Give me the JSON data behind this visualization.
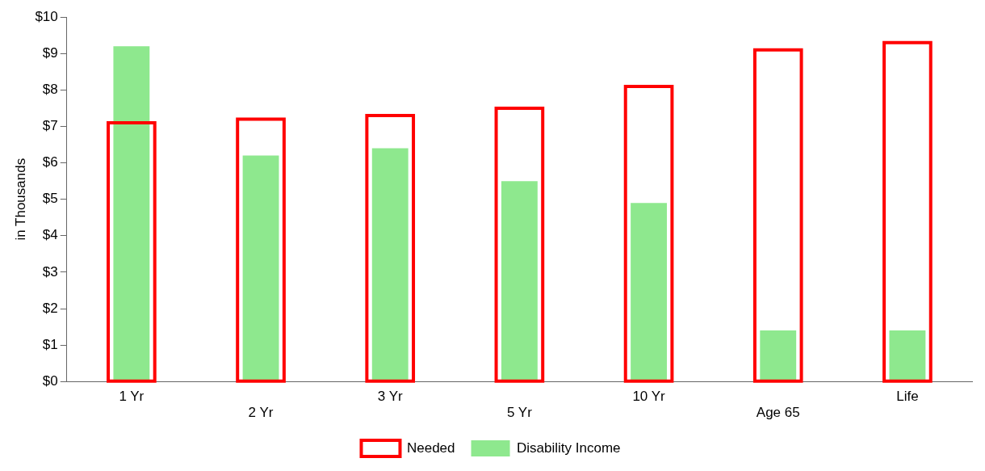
{
  "chart_data": {
    "type": "bar",
    "ylabel": "in Thousands",
    "categories": [
      "1 Yr",
      "2 Yr",
      "3 Yr",
      "5 Yr",
      "10 Yr",
      "Age 65",
      "Life"
    ],
    "series": [
      {
        "name": "Needed",
        "color": "#ff0000",
        "values": [
          7.1,
          7.2,
          7.3,
          7.5,
          8.1,
          9.1,
          9.3
        ]
      },
      {
        "name": "Disability Income",
        "color": "#8ee88e",
        "values": [
          9.2,
          6.2,
          6.4,
          5.5,
          4.9,
          1.4,
          1.4
        ]
      }
    ],
    "ylim": [
      0,
      10
    ],
    "yticks": [
      {
        "value": 0,
        "label": "$0"
      },
      {
        "value": 1,
        "label": "$1"
      },
      {
        "value": 2,
        "label": "$2"
      },
      {
        "value": 3,
        "label": "$3"
      },
      {
        "value": 4,
        "label": "$4"
      },
      {
        "value": 5,
        "label": "$5"
      },
      {
        "value": 6,
        "label": "$6"
      },
      {
        "value": 7,
        "label": "$7"
      },
      {
        "value": 8,
        "label": "$8"
      },
      {
        "value": 9,
        "label": "$9"
      },
      {
        "value": 10,
        "label": "$10"
      }
    ],
    "grid": false,
    "legend": "bottom"
  }
}
